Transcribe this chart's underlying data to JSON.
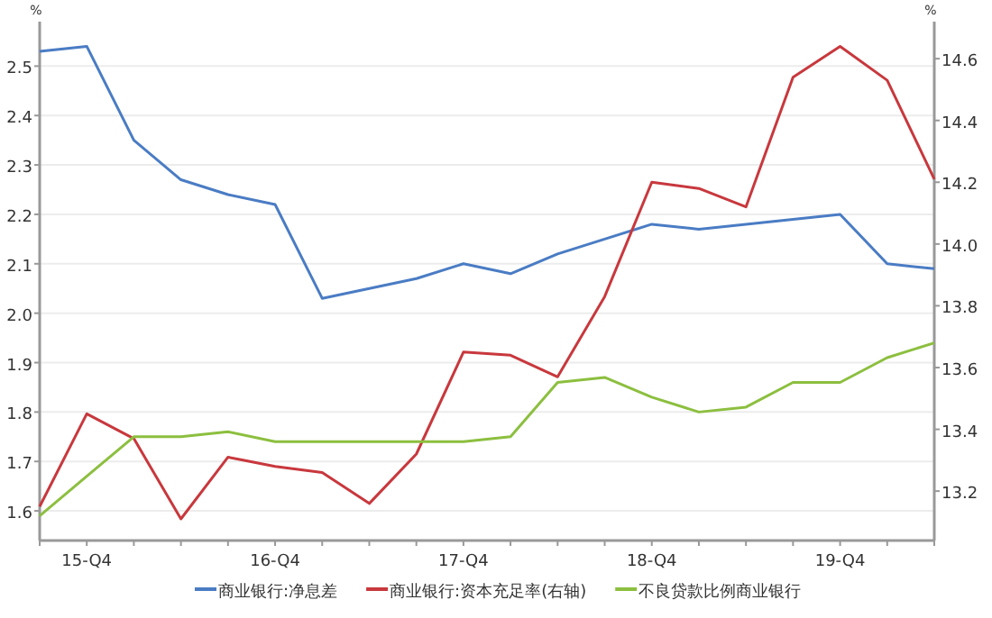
{
  "chart_data": {
    "type": "line",
    "categories": [
      null,
      "15-Q4",
      null,
      null,
      null,
      "16-Q4",
      null,
      null,
      null,
      "17-Q4",
      null,
      null,
      null,
      "18-Q4",
      null,
      null,
      null,
      "19-Q4",
      null,
      null
    ],
    "series": [
      {
        "name": "商业银行:净息差",
        "color": "#4a7cc4",
        "values": [
          2.53,
          2.54,
          2.35,
          2.27,
          2.24,
          2.22,
          2.03,
          2.05,
          2.07,
          2.1,
          2.08,
          2.12,
          2.15,
          2.18,
          2.17,
          2.18,
          2.19,
          2.2,
          2.1,
          2.09
        ]
      },
      {
        "name": "商业银行:资本充足率(右轴)",
        "color": "#c8383d",
        "axis": "y2",
        "values": [
          13.15,
          13.45,
          13.37,
          13.11,
          13.31,
          13.28,
          13.26,
          13.16,
          13.32,
          13.65,
          13.64,
          13.57,
          13.83,
          14.2,
          14.18,
          14.12,
          14.54,
          14.64,
          14.53,
          14.21
        ]
      },
      {
        "name": "不良贷款比例商业银行",
        "color": "#8cbf3f",
        "values": [
          1.59,
          1.67,
          1.75,
          1.75,
          1.76,
          1.74,
          1.74,
          1.74,
          1.74,
          1.74,
          1.75,
          1.86,
          1.87,
          1.83,
          1.8,
          1.81,
          1.86,
          1.86,
          1.91,
          1.94
        ]
      }
    ],
    "ylim": [
      1.54,
      2.59
    ],
    "yticks": [
      1.6,
      1.7,
      1.8,
      1.9,
      {
        "value": 2,
        "label": "2.0"
      },
      2.1,
      2.2,
      2.3,
      2.4,
      2.5
    ],
    "y2lim": [
      13.04,
      14.72
    ],
    "y2ticks": [
      13.2,
      13.4,
      13.6,
      13.8,
      {
        "value": 14,
        "label": "14.0"
      },
      14.2,
      14.4,
      14.6
    ],
    "ylabel": "%",
    "y2label": "%",
    "grid": "y",
    "legend": "bottom"
  }
}
